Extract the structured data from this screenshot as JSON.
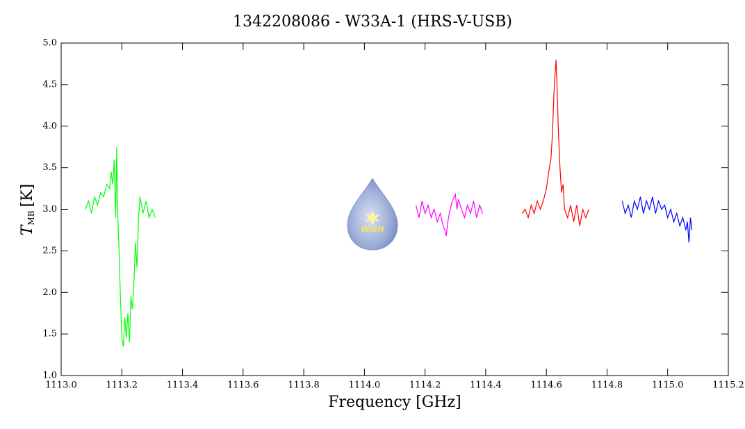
{
  "chart_data": {
    "type": "line",
    "title": "1342208086 - W33A-1 (HRS-V-USB)",
    "x_label": "Frequency [GHz]",
    "y_label": {
      "symbol": "T",
      "subscript": "MB",
      "unit": "[K]"
    },
    "logo_text": "WISH",
    "xlim": [
      1113.0,
      1115.2
    ],
    "xticks": [
      {
        "value": 1113.0,
        "label": "1113.0"
      },
      1113.2,
      1113.4,
      1113.6,
      1113.8,
      {
        "value": 1114.0,
        "label": "1114.0"
      },
      1114.2,
      1114.4,
      1114.6,
      1114.8,
      {
        "value": 1115.0,
        "label": "1115.0"
      },
      1115.2
    ],
    "ylim": [
      1.0,
      5.0
    ],
    "yticks": [
      {
        "value": 1.0,
        "label": "1.0"
      },
      1.5,
      {
        "value": 2.0,
        "label": "2.0"
      },
      2.5,
      {
        "value": 3.0,
        "label": "3.0"
      },
      3.5,
      {
        "value": 4.0,
        "label": "4.0"
      },
      4.5,
      {
        "value": 5.0,
        "label": "5.0"
      }
    ],
    "series": [
      {
        "color": "#00ff00",
        "x": [
          1113.08,
          1113.09,
          1113.1,
          1113.11,
          1113.12,
          1113.13,
          1113.14,
          1113.15,
          1113.16,
          1113.165,
          1113.17,
          1113.175,
          1113.18,
          1113.183,
          1113.186,
          1113.19,
          1113.195,
          1113.2,
          1113.205,
          1113.21,
          1113.215,
          1113.22,
          1113.225,
          1113.23,
          1113.235,
          1113.24,
          1113.245,
          1113.25,
          1113.255,
          1113.26,
          1113.27,
          1113.28,
          1113.29,
          1113.3,
          1113.31
        ],
        "values": [
          3.0,
          3.1,
          2.95,
          3.15,
          3.05,
          3.2,
          3.15,
          3.3,
          3.25,
          3.45,
          3.3,
          3.6,
          2.9,
          3.75,
          3.0,
          2.6,
          2.0,
          1.45,
          1.35,
          1.7,
          1.45,
          1.75,
          1.4,
          1.95,
          1.8,
          2.1,
          2.6,
          2.3,
          2.9,
          3.15,
          2.95,
          3.1,
          2.9,
          3.0,
          2.9
        ]
      },
      {
        "color": "#ff00ff",
        "x": [
          1114.17,
          1114.18,
          1114.19,
          1114.2,
          1114.21,
          1114.22,
          1114.23,
          1114.24,
          1114.25,
          1114.26,
          1114.265,
          1114.27,
          1114.275,
          1114.28,
          1114.29,
          1114.3,
          1114.305,
          1114.31,
          1114.32,
          1114.33,
          1114.34,
          1114.35,
          1114.36,
          1114.37,
          1114.38,
          1114.39
        ],
        "values": [
          3.05,
          2.9,
          3.1,
          2.95,
          3.05,
          2.9,
          3.0,
          2.85,
          2.95,
          2.8,
          2.75,
          2.68,
          2.85,
          2.95,
          3.1,
          3.18,
          3.0,
          3.12,
          3.0,
          2.9,
          3.05,
          2.95,
          3.1,
          2.9,
          3.05,
          2.95
        ]
      },
      {
        "color": "#ff0000",
        "x": [
          1114.52,
          1114.53,
          1114.54,
          1114.55,
          1114.56,
          1114.57,
          1114.58,
          1114.59,
          1114.6,
          1114.61,
          1114.615,
          1114.62,
          1114.625,
          1114.63,
          1114.632,
          1114.635,
          1114.64,
          1114.645,
          1114.65,
          1114.655,
          1114.66,
          1114.67,
          1114.68,
          1114.69,
          1114.7,
          1114.71,
          1114.72,
          1114.73,
          1114.74
        ],
        "values": [
          2.95,
          3.0,
          2.9,
          3.05,
          2.95,
          3.1,
          3.0,
          3.1,
          3.25,
          3.5,
          3.6,
          3.9,
          4.4,
          4.7,
          4.8,
          4.5,
          3.9,
          3.5,
          3.2,
          3.3,
          3.0,
          2.9,
          3.05,
          2.85,
          3.05,
          2.8,
          3.0,
          2.9,
          3.0
        ]
      },
      {
        "color": "#0000ff",
        "x": [
          1114.85,
          1114.86,
          1114.87,
          1114.88,
          1114.89,
          1114.9,
          1114.91,
          1114.92,
          1114.93,
          1114.94,
          1114.95,
          1114.96,
          1114.97,
          1114.98,
          1114.99,
          1115.0,
          1115.01,
          1115.02,
          1115.03,
          1115.04,
          1115.05,
          1115.06,
          1115.065,
          1115.07,
          1115.075,
          1115.08
        ],
        "values": [
          3.1,
          2.95,
          3.05,
          2.9,
          3.1,
          3.0,
          3.15,
          2.95,
          3.1,
          3.0,
          3.15,
          2.95,
          3.1,
          3.0,
          3.05,
          2.9,
          3.0,
          2.85,
          2.95,
          2.8,
          2.9,
          2.75,
          2.85,
          2.6,
          2.9,
          2.75
        ]
      }
    ]
  }
}
